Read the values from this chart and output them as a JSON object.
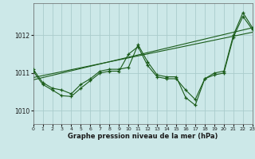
{
  "title": "Graphe pression niveau de la mer (hPa)",
  "background_color": "#cce8e8",
  "grid_color": "#aacccc",
  "line_color": "#1a5c1a",
  "xlim": [
    0,
    23
  ],
  "ylim": [
    1009.65,
    1012.85
  ],
  "yticks": [
    1010,
    1011,
    1012
  ],
  "xtick_labels": [
    "0",
    "1",
    "2",
    "3",
    "4",
    "5",
    "6",
    "7",
    "8",
    "9",
    "10",
    "11",
    "12",
    "13",
    "14",
    "15",
    "16",
    "17",
    "18",
    "19",
    "20",
    "21",
    "22",
    "23"
  ],
  "series": [
    {
      "x": [
        0,
        1,
        2,
        3,
        4,
        5,
        6,
        7,
        8,
        9,
        10,
        11,
        12,
        13,
        14,
        15,
        16,
        17,
        18,
        19,
        20,
        21,
        22,
        23
      ],
      "y": [
        1011.1,
        1010.75,
        1010.6,
        1010.55,
        1010.45,
        1010.7,
        1010.85,
        1011.05,
        1011.1,
        1011.1,
        1011.15,
        1011.75,
        1011.3,
        1010.95,
        1010.9,
        1010.9,
        1010.35,
        1010.15,
        1010.85,
        1011.0,
        1011.05,
        1012.0,
        1012.6,
        1012.2
      ]
    },
    {
      "x": [
        0,
        1,
        2,
        3,
        4,
        5,
        6,
        7,
        8,
        9,
        10,
        11,
        12,
        13,
        14,
        15,
        16,
        17,
        18,
        19,
        20,
        21,
        22,
        23
      ],
      "y": [
        1011.05,
        1010.7,
        1010.55,
        1010.4,
        1010.38,
        1010.6,
        1010.8,
        1011.0,
        1011.05,
        1011.05,
        1011.5,
        1011.7,
        1011.2,
        1010.9,
        1010.85,
        1010.85,
        1010.55,
        1010.3,
        1010.85,
        1010.95,
        1011.0,
        1011.95,
        1012.5,
        1012.15
      ]
    },
    {
      "x": [
        0,
        23
      ],
      "y": [
        1010.82,
        1012.2
      ]
    },
    {
      "x": [
        0,
        23
      ],
      "y": [
        1010.88,
        1012.08
      ]
    }
  ]
}
